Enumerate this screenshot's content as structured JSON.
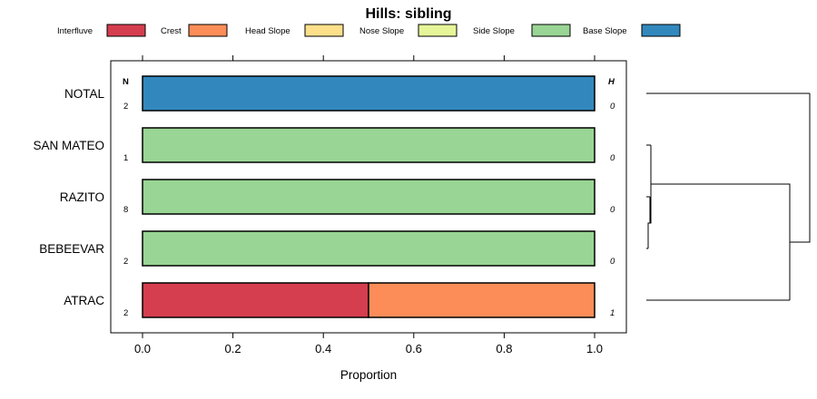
{
  "chart_data": {
    "type": "bar",
    "orientation": "horizontal",
    "stacked": true,
    "title": "Hills: sibling",
    "xlabel": "Proportion",
    "ylabel": "",
    "xlim": [
      0,
      1
    ],
    "xticks": [
      "0.0",
      "0.2",
      "0.4",
      "0.6",
      "0.8",
      "1.0"
    ],
    "legend_position": "top",
    "categories": [
      "NOTAL",
      "SAN MATEO",
      "RAZITO",
      "BEBEEVAR",
      "ATRAC"
    ],
    "series": [
      {
        "name": "Interfluve",
        "color": "#d53e4f",
        "values": [
          0,
          0,
          0,
          0,
          0.5
        ]
      },
      {
        "name": "Crest",
        "color": "#fc8d59",
        "values": [
          0,
          0,
          0,
          0,
          0.5
        ]
      },
      {
        "name": "Head Slope",
        "color": "#fee08b",
        "values": [
          0,
          0,
          0,
          0,
          0
        ]
      },
      {
        "name": "Nose Slope",
        "color": "#e6f598",
        "values": [
          0,
          0,
          0,
          0,
          0
        ]
      },
      {
        "name": "Side Slope",
        "color": "#99d594",
        "values": [
          0,
          1,
          1,
          1,
          0
        ]
      },
      {
        "name": "Base Slope",
        "color": "#3288bd",
        "values": [
          1,
          0,
          0,
          0,
          0
        ]
      }
    ],
    "n_header": "N",
    "h_header": "H",
    "n_values": [
      "2",
      "1",
      "8",
      "2",
      "2"
    ],
    "h_values": [
      "0",
      "0",
      "0",
      "0",
      "1"
    ],
    "dendrogram": true
  }
}
